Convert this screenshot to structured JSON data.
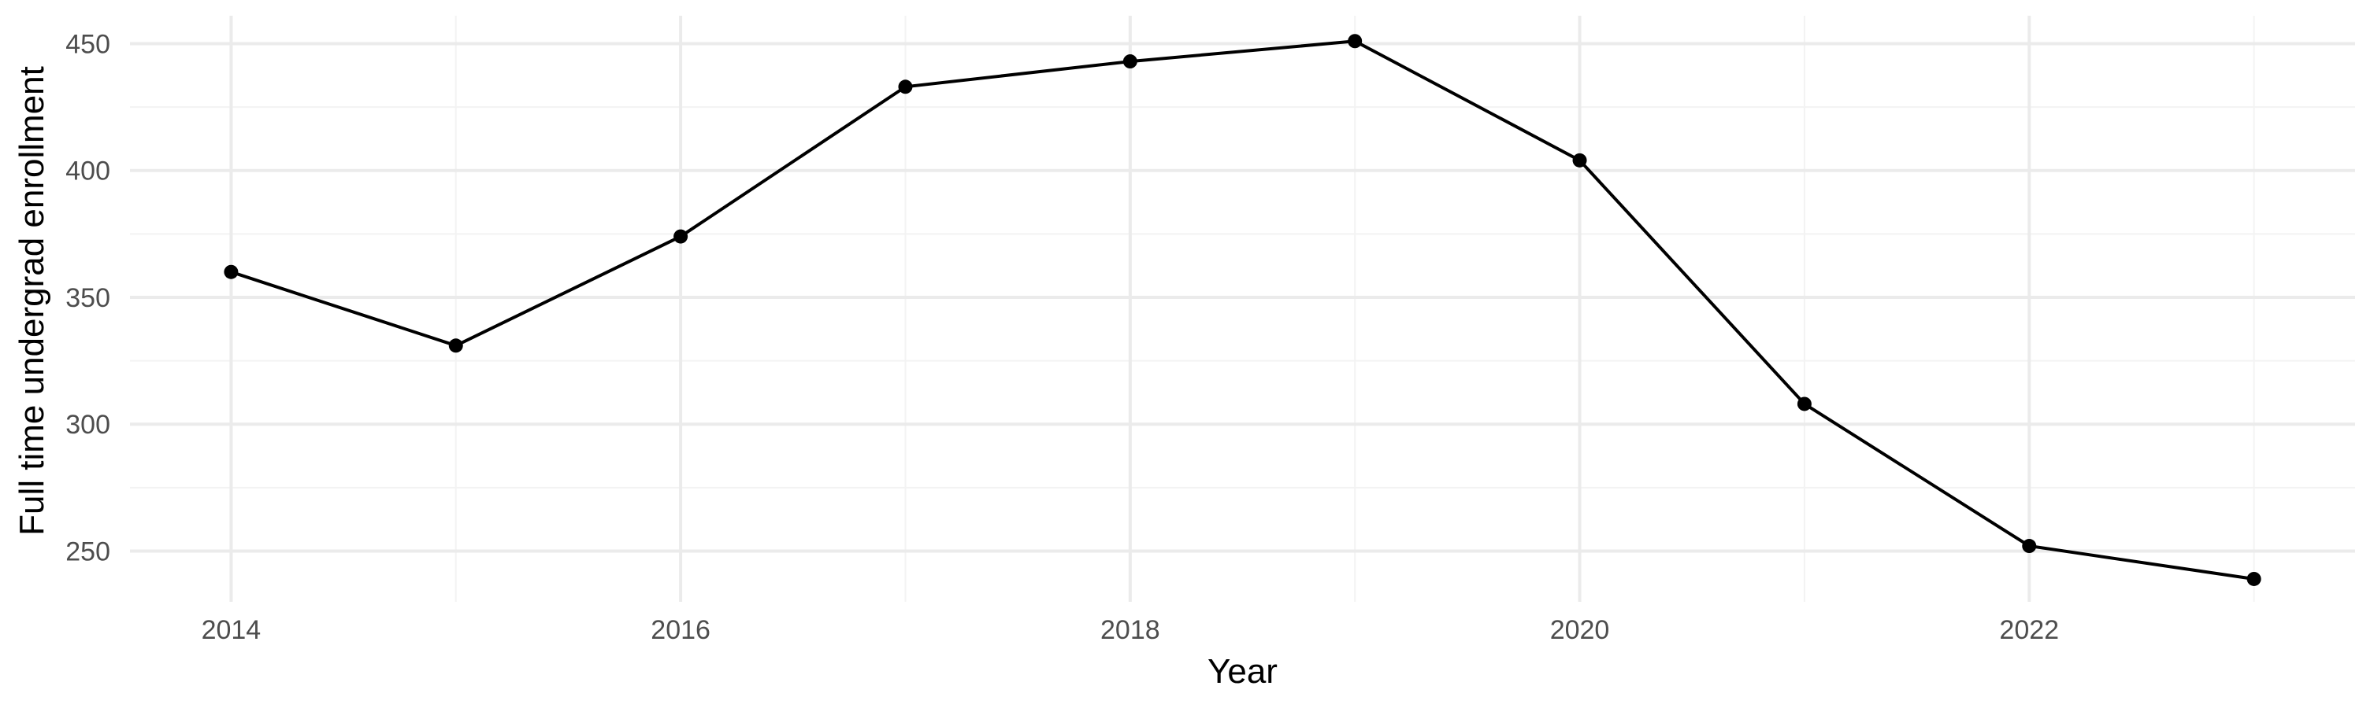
{
  "chart_data": {
    "type": "line",
    "title": "",
    "xlabel": "Year",
    "ylabel": "Full time undergrad enrollment",
    "x": [
      2014,
      2015,
      2016,
      2017,
      2018,
      2019,
      2020,
      2021,
      2022,
      2023
    ],
    "series": [
      {
        "values": [
          360,
          331,
          374,
          433,
          443,
          451,
          404,
          308,
          252,
          239
        ],
        "color": "#000000"
      }
    ],
    "xlim": [
      2013.55,
      2023.45
    ],
    "ylim": [
      230,
      461
    ],
    "x_ticks": [
      2014,
      2016,
      2018,
      2020,
      2022
    ],
    "x_tick_labels": [
      "2014",
      "2016",
      "2018",
      "2020",
      "2022"
    ],
    "x_minor_ticks": [
      2015,
      2017,
      2019,
      2021,
      2023
    ],
    "y_ticks": [
      250,
      300,
      350,
      400,
      450
    ],
    "y_tick_labels": [
      "250",
      "300",
      "350",
      "400",
      "450"
    ],
    "y_minor_ticks": [
      275,
      325,
      375,
      425
    ],
    "grid": true,
    "legend": "none",
    "style": {
      "background": "#ffffff",
      "major_grid": "#ebebeb",
      "minor_grid": "#f3f3f3",
      "tick_text": "#4d4d4d"
    }
  }
}
